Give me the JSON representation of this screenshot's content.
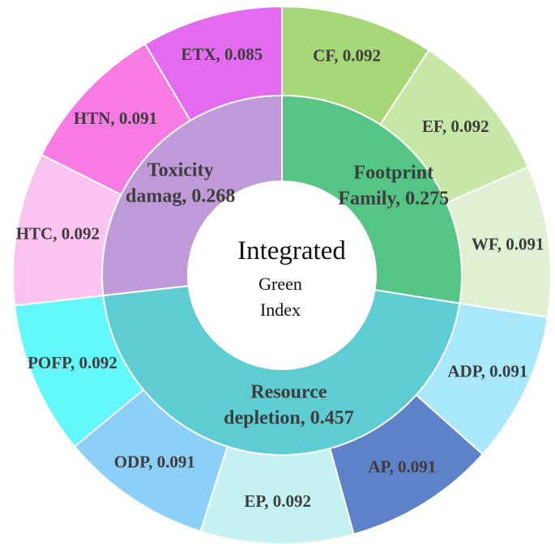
{
  "chart_data": {
    "type": "sunburst",
    "center": {
      "title": "Integrated",
      "subtitle_lines": [
        "Green",
        "Index"
      ]
    },
    "inner_ring": [
      {
        "key": "footprint",
        "label_lines": [
          "Footprint",
          "Family, 0.275"
        ],
        "value": 0.275,
        "color": "#55c585"
      },
      {
        "key": "resource",
        "label_lines": [
          "Resource",
          "depletion, 0.457"
        ],
        "value": 0.457,
        "color": "#5ecdd3"
      },
      {
        "key": "toxicity",
        "label_lines": [
          "Toxicity",
          "damag, 0.268"
        ],
        "value": 0.268,
        "color": "#c09ad8"
      }
    ],
    "outer_ring": [
      {
        "key": "cf",
        "label": "CF, 0.092",
        "value": 0.092,
        "parent": "footprint",
        "color": "#a6d877"
      },
      {
        "key": "ef",
        "label": "EF, 0.092",
        "value": 0.092,
        "parent": "footprint",
        "color": "#c7e7a7"
      },
      {
        "key": "wf",
        "label": "WF, 0.091",
        "value": 0.091,
        "parent": "footprint",
        "color": "#dff0d3"
      },
      {
        "key": "adp",
        "label": "ADP, 0.091",
        "value": 0.091,
        "parent": "resource",
        "color": "#a9e8fa"
      },
      {
        "key": "ap",
        "label": "AP, 0.091",
        "value": 0.091,
        "parent": "resource",
        "color": "#5d82c9"
      },
      {
        "key": "ep",
        "label": "EP, 0.092",
        "value": 0.092,
        "parent": "resource",
        "color": "#c6f1f2"
      },
      {
        "key": "odp",
        "label": "ODP, 0.091",
        "value": 0.091,
        "parent": "resource",
        "color": "#8ccff9"
      },
      {
        "key": "pofp",
        "label": "POFP, 0.092",
        "value": 0.092,
        "parent": "resource",
        "color": "#62f8fb"
      },
      {
        "key": "htc",
        "label": "HTC, 0.092",
        "value": 0.092,
        "parent": "toxicity",
        "color": "#fbc3f0"
      },
      {
        "key": "htn",
        "label": "HTN, 0.091",
        "value": 0.091,
        "parent": "toxicity",
        "color": "#f77be3"
      },
      {
        "key": "etx",
        "label": "ETX, 0.085",
        "value": 0.085,
        "parent": "toxicity",
        "color": "#e46af0"
      }
    ]
  }
}
